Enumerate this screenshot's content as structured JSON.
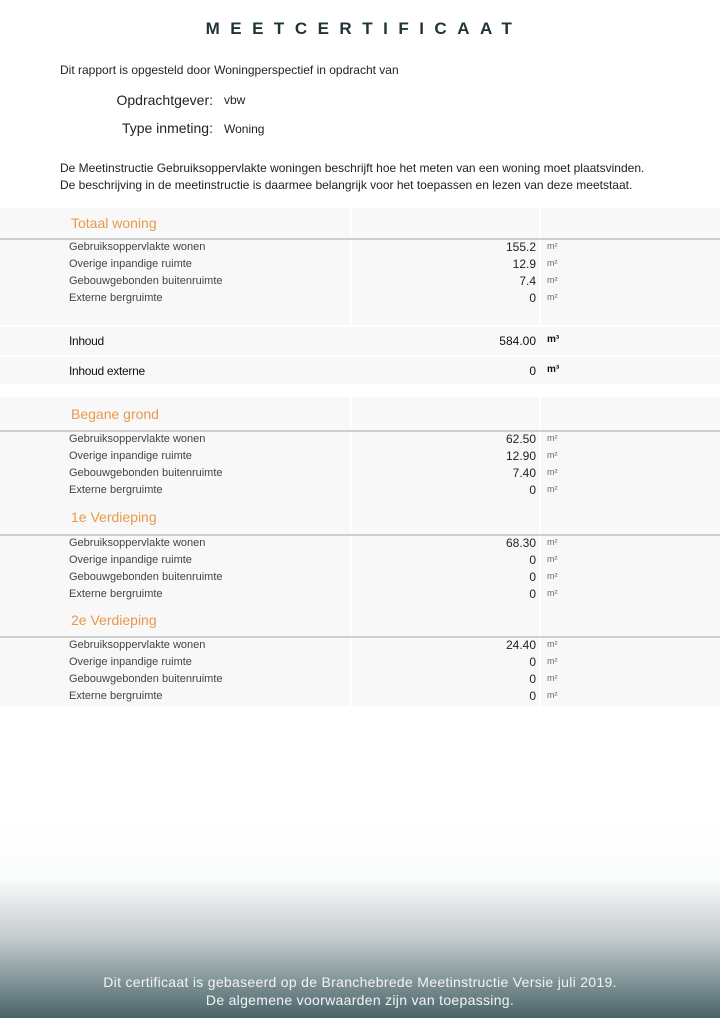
{
  "title": "MEETCERTIFICAAT",
  "intro": "Dit rapport is opgesteld door Woningperspectief in opdracht van",
  "client": {
    "label": "Opdrachtgever:",
    "value": "vbw"
  },
  "type": {
    "label": "Type inmeting:",
    "value": "Woning"
  },
  "description": [
    "De Meetinstructie Gebruiksoppervlakte woningen beschrijft hoe het meten van een woning moet plaatsvinden.",
    "De beschrijving in de meetinstructie is daarmee belangrijk voor het toepassen en lezen van deze meetstaat."
  ],
  "accent_color": "#e8994a",
  "total": {
    "heading": "Totaal woning",
    "rows": [
      {
        "label": "Gebruiksoppervlakte wonen",
        "value": "155.2",
        "unit": "m²"
      },
      {
        "label": "Overige inpandige ruimte",
        "value": "12.9",
        "unit": "m²"
      },
      {
        "label": "Gebouwgebonden buitenruimte",
        "value": "7.4",
        "unit": "m²"
      },
      {
        "label": "Externe bergruimte",
        "value": "0",
        "unit": "m²"
      }
    ],
    "volume": [
      {
        "label": "Inhoud",
        "value": "584.00",
        "unit": "m³"
      },
      {
        "label": "Inhoud externe",
        "value": "0",
        "unit": "m³"
      }
    ]
  },
  "floors": [
    {
      "heading": "Begane grond",
      "rows": [
        {
          "label": "Gebruiksoppervlakte wonen",
          "value": "62.50",
          "unit": "m²"
        },
        {
          "label": "Overige inpandige ruimte",
          "value": "12.90",
          "unit": "m²"
        },
        {
          "label": "Gebouwgebonden buitenruimte",
          "value": "7.40",
          "unit": "m²"
        },
        {
          "label": "Externe bergruimte",
          "value": "0",
          "unit": "m²"
        }
      ]
    },
    {
      "heading": "1e Verdieping",
      "rows": [
        {
          "label": "Gebruiksoppervlakte wonen",
          "value": "68.30",
          "unit": "m²"
        },
        {
          "label": "Overige inpandige ruimte",
          "value": "0",
          "unit": "m²"
        },
        {
          "label": "Gebouwgebonden buitenruimte",
          "value": "0",
          "unit": "m²"
        },
        {
          "label": "Externe bergruimte",
          "value": "0",
          "unit": "m²"
        }
      ]
    },
    {
      "heading": "2e Verdieping",
      "rows": [
        {
          "label": "Gebruiksoppervlakte wonen",
          "value": "24.40",
          "unit": "m²"
        },
        {
          "label": "Overige inpandige ruimte",
          "value": "0",
          "unit": "m²"
        },
        {
          "label": "Gebouwgebonden buitenruimte",
          "value": "0",
          "unit": "m²"
        },
        {
          "label": "Externe bergruimte",
          "value": "0",
          "unit": "m²"
        }
      ]
    }
  ],
  "footer": [
    "Dit certificaat is gebaseerd op de Branchebrede Meetinstructie Versie juli 2019.",
    "De algemene voorwaarden zijn van toepassing."
  ]
}
